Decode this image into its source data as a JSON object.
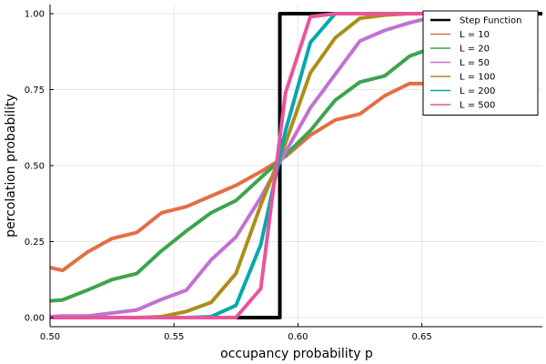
{
  "chart_data": {
    "type": "line",
    "title": "",
    "xlabel": "occupancy probability p",
    "ylabel": "percolation probability",
    "xlim": [
      0.5,
      0.6986
    ],
    "ylim": [
      -0.03,
      1.03
    ],
    "xticks": [
      0.5,
      0.55,
      0.6,
      0.65
    ],
    "xtick_labels": [
      "0.50",
      "0.55",
      "0.60",
      "0.65"
    ],
    "yticks": [
      0,
      0.25,
      0.5,
      0.75,
      1.0
    ],
    "ytick_labels": [
      "0.00",
      "0.25",
      "0.50",
      "0.75",
      "1.00"
    ],
    "grid": true,
    "legend_position": "top-right",
    "series": [
      {
        "name": "Step Function",
        "color": "#000000",
        "x": [
          0.5,
          0.5927,
          0.5927,
          0.6986
        ],
        "y": [
          0,
          0,
          1,
          1
        ]
      },
      {
        "name": "L = 10",
        "color": "#e26f46",
        "x": [
          0.5,
          0.505,
          0.515,
          0.525,
          0.535,
          0.545,
          0.555,
          0.565,
          0.575,
          0.585,
          0.595,
          0.605,
          0.615,
          0.625,
          0.635,
          0.645,
          0.655,
          0.665,
          0.675,
          0.685,
          0.695
        ],
        "y": [
          0.165,
          0.155,
          0.215,
          0.26,
          0.28,
          0.345,
          0.365,
          0.4,
          0.435,
          0.48,
          0.53,
          0.6,
          0.65,
          0.67,
          0.73,
          0.77,
          0.77,
          0.82,
          0.85,
          0.87,
          0.89
        ]
      },
      {
        "name": "L = 20",
        "color": "#3da44e",
        "x": [
          0.5,
          0.505,
          0.515,
          0.525,
          0.535,
          0.545,
          0.555,
          0.565,
          0.575,
          0.585,
          0.595,
          0.605,
          0.615,
          0.625,
          0.635,
          0.645,
          0.655,
          0.665,
          0.675,
          0.685,
          0.695
        ],
        "y": [
          0.055,
          0.058,
          0.09,
          0.125,
          0.145,
          0.22,
          0.285,
          0.345,
          0.385,
          0.46,
          0.535,
          0.615,
          0.715,
          0.775,
          0.795,
          0.86,
          0.89,
          0.92,
          0.95,
          0.96,
          0.97
        ]
      },
      {
        "name": "L = 50",
        "color": "#c271d2",
        "x": [
          0.5,
          0.505,
          0.515,
          0.525,
          0.535,
          0.545,
          0.555,
          0.565,
          0.575,
          0.585,
          0.595,
          0.605,
          0.615,
          0.625,
          0.635,
          0.645,
          0.655,
          0.665,
          0.675,
          0.685,
          0.695
        ],
        "y": [
          0.003,
          0.005,
          0.005,
          0.015,
          0.025,
          0.06,
          0.09,
          0.19,
          0.265,
          0.395,
          0.545,
          0.69,
          0.8,
          0.91,
          0.945,
          0.97,
          0.99,
          1.0,
          1.0,
          1.0,
          1.0
        ]
      },
      {
        "name": "L = 100",
        "color": "#ac8e18",
        "x": [
          0.5,
          0.505,
          0.515,
          0.525,
          0.535,
          0.545,
          0.555,
          0.565,
          0.575,
          0.585,
          0.595,
          0.605,
          0.615,
          0.625,
          0.635,
          0.645,
          0.655,
          0.665,
          0.675,
          0.685,
          0.695
        ],
        "y": [
          0.0,
          0.0,
          0.0,
          0.0,
          0.0,
          0.003,
          0.02,
          0.05,
          0.145,
          0.37,
          0.575,
          0.805,
          0.92,
          0.985,
          0.995,
          1.0,
          1.0,
          1.0,
          1.0,
          1.0,
          1.0
        ]
      },
      {
        "name": "L = 200",
        "color": "#00a9ad",
        "x": [
          0.5,
          0.505,
          0.515,
          0.525,
          0.535,
          0.545,
          0.555,
          0.565,
          0.575,
          0.585,
          0.595,
          0.605,
          0.615,
          0.625,
          0.635,
          0.645,
          0.655,
          0.665,
          0.675,
          0.685,
          0.695
        ],
        "y": [
          0.0,
          0.0,
          0.0,
          0.0,
          0.0,
          0.0,
          0.0,
          0.003,
          0.04,
          0.24,
          0.615,
          0.905,
          1.0,
          1.0,
          1.0,
          1.0,
          1.0,
          1.0,
          1.0,
          1.0,
          1.0
        ]
      },
      {
        "name": "L = 500",
        "color": "#e8559a",
        "x": [
          0.5,
          0.505,
          0.515,
          0.525,
          0.535,
          0.545,
          0.555,
          0.565,
          0.575,
          0.585,
          0.595,
          0.605,
          0.615,
          0.625,
          0.635,
          0.645,
          0.655,
          0.665,
          0.675,
          0.685,
          0.695
        ],
        "y": [
          0.0,
          0.0,
          0.0,
          0.0,
          0.0,
          0.0,
          0.0,
          0.0,
          0.0,
          0.095,
          0.74,
          0.99,
          1.0,
          1.0,
          1.0,
          1.0,
          1.0,
          1.0,
          1.0,
          1.0,
          1.0
        ]
      }
    ]
  }
}
